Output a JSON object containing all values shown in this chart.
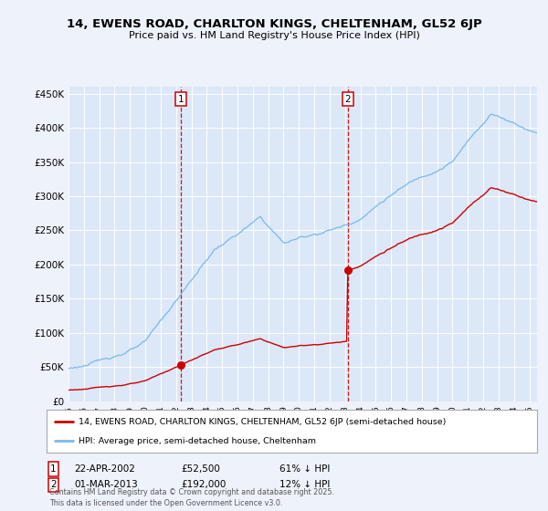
{
  "title": "14, EWENS ROAD, CHARLTON KINGS, CHELTENHAM, GL52 6JP",
  "subtitle": "Price paid vs. HM Land Registry's House Price Index (HPI)",
  "background_color": "#eef2fb",
  "plot_bg_color": "#dce8f8",
  "sale1_date": "22-APR-2002",
  "sale1_price": 52500,
  "sale1_label": "61% ↓ HPI",
  "sale1_x": 2002.31,
  "sale2_date": "01-MAR-2013",
  "sale2_price": 192000,
  "sale2_label": "12% ↓ HPI",
  "sale2_x": 2013.17,
  "legend_property": "14, EWENS ROAD, CHARLTON KINGS, CHELTENHAM, GL52 6JP (semi-detached house)",
  "legend_hpi": "HPI: Average price, semi-detached house, Cheltenham",
  "footer": "Contains HM Land Registry data © Crown copyright and database right 2025.\nThis data is licensed under the Open Government Licence v3.0.",
  "hpi_color": "#7ab8e8",
  "price_color": "#cc0000",
  "vline_color": "#cc0000",
  "ylim": [
    0,
    460000
  ],
  "xlim_start": 1995.0,
  "xlim_end": 2025.5
}
